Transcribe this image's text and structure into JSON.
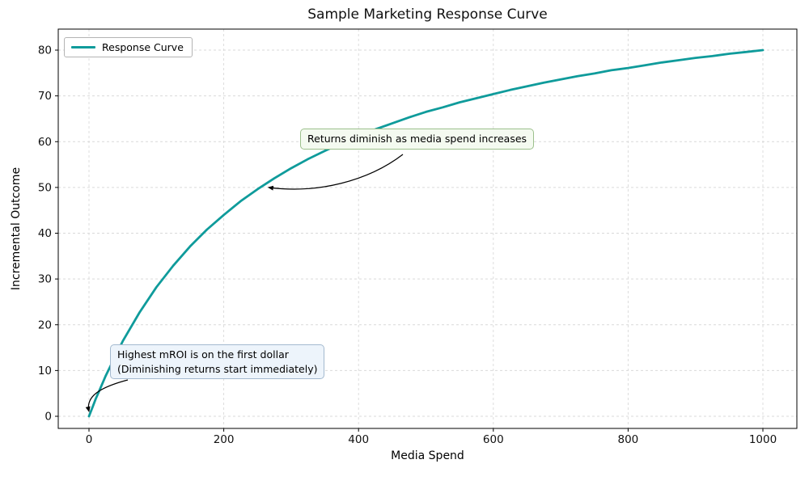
{
  "chart_data": {
    "type": "line",
    "title": "Sample Marketing Response Curve",
    "xlabel": "Media Spend",
    "ylabel": "Incremental Outcome",
    "x_ticks": [
      0,
      200,
      400,
      600,
      800,
      1000
    ],
    "y_ticks": [
      0,
      10,
      20,
      30,
      40,
      50,
      60,
      70,
      80
    ],
    "xlim": [
      -46,
      1050
    ],
    "ylim": [
      -2.6,
      84.6
    ],
    "grid": true,
    "grid_style": "dashed",
    "legend": {
      "position": "upper-left",
      "entries": [
        {
          "label": "Response Curve",
          "color": "#0f9b9b"
        }
      ]
    },
    "series": [
      {
        "name": "Response Curve",
        "color": "#0f9b9b",
        "x": [
          0,
          5,
          10,
          15,
          25,
          50,
          75,
          100,
          125,
          150,
          175,
          200,
          225,
          250,
          275,
          300,
          325,
          350,
          375,
          400,
          425,
          450,
          475,
          500,
          525,
          550,
          575,
          600,
          625,
          650,
          675,
          700,
          725,
          750,
          775,
          800,
          825,
          850,
          875,
          900,
          925,
          950,
          975,
          1000
        ],
        "y": [
          0,
          1.9,
          3.8,
          5.5,
          8.9,
          16.4,
          22.7,
          28.2,
          32.9,
          37.1,
          40.8,
          44.0,
          47.0,
          49.6,
          52.0,
          54.2,
          56.2,
          58.0,
          59.7,
          61.3,
          62.7,
          64.0,
          65.3,
          66.5,
          67.5,
          68.6,
          69.5,
          70.4,
          71.3,
          72.1,
          72.9,
          73.6,
          74.3,
          74.9,
          75.6,
          76.1,
          76.7,
          77.3,
          77.8,
          78.3,
          78.7,
          79.2,
          79.6,
          80.0
        ]
      }
    ],
    "annotations": [
      {
        "text": "Returns diminish as media spend increases",
        "bg": "#f4faf0",
        "border": "#9cc08c",
        "arrow_target_x": 258,
        "arrow_target_y": 50
      },
      {
        "line1": "Highest mROI is on the first dollar",
        "line2": "(Diminishing returns start immediately)",
        "bg": "#edf4fb",
        "border": "#a3b9cf",
        "arrow_target_x": 0,
        "arrow_target_y": 0
      }
    ]
  }
}
